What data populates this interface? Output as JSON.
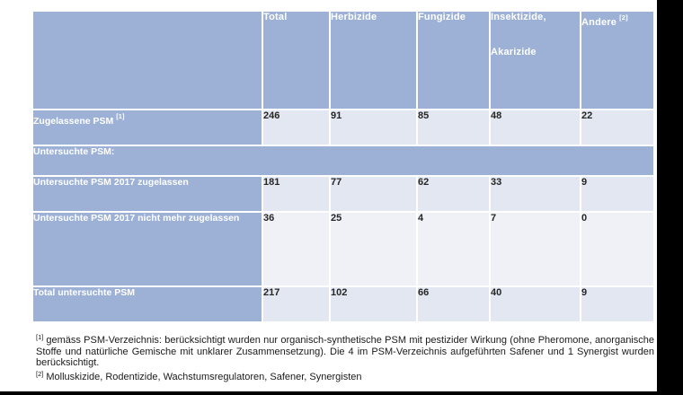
{
  "colors": {
    "header_blue": "#9db1d7",
    "band_a": "#e3e7f1",
    "band_b": "#eff1f7",
    "frame_black": "#000000",
    "label_text": "#ffffff",
    "value_text": "#262626"
  },
  "table": {
    "columns": [
      {
        "label": ""
      },
      {
        "label": "Total"
      },
      {
        "label": "Herbizide"
      },
      {
        "label": "Fungizide"
      },
      {
        "label_line1": "Insektizide,",
        "label_line2": "Akarizide"
      },
      {
        "label": "Andere",
        "footnote_ref": "[2]"
      }
    ],
    "rows": [
      {
        "label": "Zugelassene PSM",
        "footnote_ref": "[1]",
        "values": [
          "246",
          "91",
          "85",
          "48",
          "22"
        ]
      },
      {
        "label": "Untersuchte PSM:",
        "section": true
      },
      {
        "label": "Untersuchte PSM 2017 zugelassen",
        "values": [
          "181",
          "77",
          "62",
          "33",
          "9"
        ]
      },
      {
        "label": "Untersuchte PSM 2017 nicht mehr zugelassen",
        "values": [
          "36",
          "25",
          "4",
          "7",
          "0"
        ]
      },
      {
        "label": "Total untersuchte PSM",
        "values": [
          "217",
          "102",
          "66",
          "40",
          "9"
        ]
      }
    ]
  },
  "footnotes": [
    {
      "marker": "[1]",
      "text": "gemäss PSM-Verzeichnis: berücksichtigt wurden nur organisch-synthetische PSM mit pestizider Wirkung (ohne Pheromone, anorganische Stoffe und natürliche Gemische mit unklarer Zusammensetzung). Die 4 im PSM-Verzeichnis aufgeführten Safener und 1 Synergist wurden berücksichtigt."
    },
    {
      "marker": "[2]",
      "text": "Molluskizide, Rodentizide, Wachstumsregulatoren, Safener, Synergisten"
    }
  ]
}
